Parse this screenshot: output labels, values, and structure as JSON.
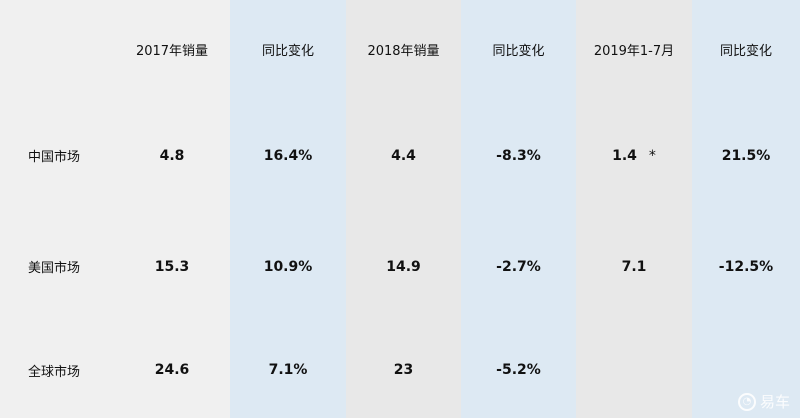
{
  "table": {
    "corner": "",
    "headers": [
      "2017年销量",
      "同比变化",
      "2018年销量",
      "同比变化",
      "2019年1-7月",
      "同比变化"
    ],
    "rows": [
      {
        "label": "中国市场",
        "values": [
          "4.8",
          "16.4%",
          "4.4",
          "-8.3%",
          "1.4",
          "21.5%"
        ],
        "note": "*"
      },
      {
        "label": "美国市场",
        "values": [
          "15.3",
          "10.9%",
          "14.9",
          "-2.7%",
          "7.1",
          "-12.5%"
        ]
      },
      {
        "label": "全球市场",
        "values": [
          "24.6",
          "7.1%",
          "23",
          "-5.2%",
          "",
          ""
        ]
      }
    ]
  },
  "colors": {
    "background": "#f0f0f0",
    "gray_column": "#e8e8e8",
    "blue_column": "#dde9f3",
    "text": "#111111",
    "watermark": "#ffffff"
  },
  "watermark": {
    "icon": "yiche-logo-icon",
    "text": "易车"
  }
}
